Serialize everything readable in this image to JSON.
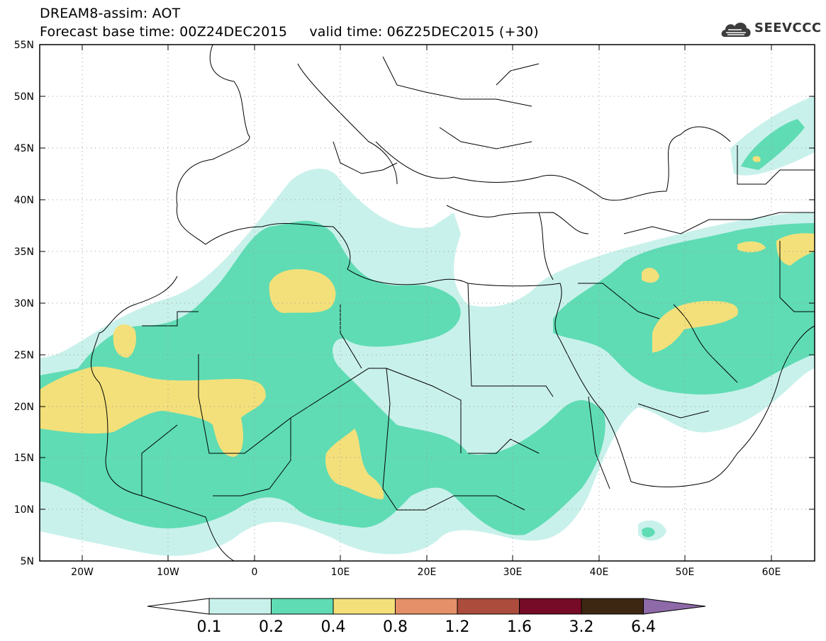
{
  "header": {
    "line1": "DREAM8-assim: AOT",
    "line2": "Forecast base time: 00Z24DEC2015     valid time: 06Z25DEC2015 (+30)"
  },
  "logo": {
    "text": "SEEVCCC",
    "icon": "cloud-icon"
  },
  "map": {
    "lon_ticks": [
      "20W",
      "10W",
      "0",
      "10E",
      "20E",
      "30E",
      "40E",
      "50E",
      "60E"
    ],
    "lat_ticks": [
      "55N",
      "50N",
      "45N",
      "40N",
      "35N",
      "30N",
      "25N",
      "20N",
      "15N",
      "10N",
      "5N"
    ],
    "lon_range": [
      -25,
      65
    ],
    "lat_range": [
      5,
      55
    ],
    "gridlines": "dotted"
  },
  "colorbar": {
    "labels": [
      "0.1",
      "0.2",
      "0.4",
      "0.8",
      "1.2",
      "1.6",
      "3.2",
      "6.4"
    ],
    "colors": [
      "#c9f1eb",
      "#5fdcb4",
      "#f3e07a",
      "#e59068",
      "#ac4c3c",
      "#750b26",
      "#3d2713"
    ],
    "under_color": "#ffffff",
    "over_color": "#8e6aa8"
  },
  "levels": {
    "l1": "0.1-0.2",
    "l2": "0.2-0.4",
    "l3": "0.4-0.8"
  },
  "colors": {
    "l1": "#c9f1eb",
    "l2": "#5fdcb4",
    "l3": "#f3e07a"
  }
}
